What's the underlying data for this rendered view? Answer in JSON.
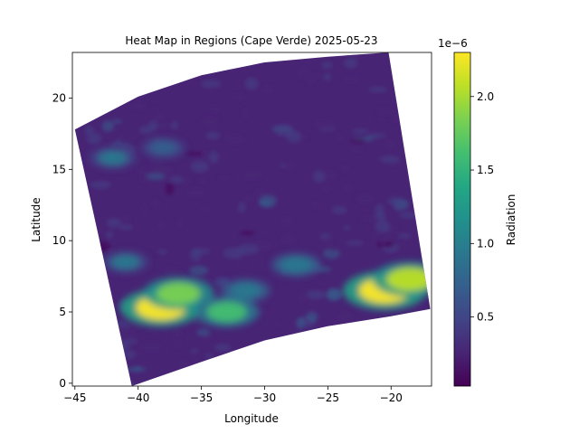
{
  "chart_data": {
    "type": "heatmap",
    "title": "Heat Map in Regions (Cape Verde) 2025-05-23",
    "xlabel": "Longitude",
    "ylabel": "Latitude",
    "xlim": [
      -45.2,
      -16.8
    ],
    "ylim": [
      -0.2,
      23.2
    ],
    "x_ticks": [
      -45,
      -40,
      -35,
      -30,
      -25,
      -20
    ],
    "y_ticks": [
      0,
      5,
      10,
      15,
      20
    ],
    "grid": false,
    "colormap": "viridis",
    "colorbar": {
      "label": "Radiation",
      "offset_text": "1e−6",
      "range": [
        3e-08,
        2.3e-06
      ],
      "ticks": [
        "0.5",
        "1.0",
        "1.5",
        "2.0"
      ],
      "tick_values": [
        0.5,
        1.0,
        1.5,
        2.0
      ]
    },
    "swath_outline": {
      "lon": [
        -45.0,
        -40.0,
        -35.0,
        -30.0,
        -25.0,
        -20.2,
        -16.9,
        -16.9,
        -20.0,
        -25.0,
        -30.0,
        -35.0,
        -40.5
      ],
      "lat": [
        17.8,
        20.1,
        21.6,
        22.5,
        22.9,
        23.2,
        5.2,
        5.2,
        4.7,
        4.0,
        3.0,
        1.5,
        -0.2
      ]
    },
    "hotspots": [
      {
        "lon": -38.2,
        "lat": 5.3,
        "value_e6": 2.2
      },
      {
        "lon": -36.8,
        "lat": 6.3,
        "value_e6": 1.8
      },
      {
        "lon": -20.5,
        "lat": 6.5,
        "value_e6": 2.3
      },
      {
        "lon": -18.5,
        "lat": 7.3,
        "value_e6": 2.0
      },
      {
        "lon": -27.5,
        "lat": 8.3,
        "value_e6": 1.0
      },
      {
        "lon": -31.5,
        "lat": 6.5,
        "value_e6": 1.0
      },
      {
        "lon": -41.0,
        "lat": 8.5,
        "value_e6": 0.9
      },
      {
        "lon": -42.0,
        "lat": 15.8,
        "value_e6": 0.9
      },
      {
        "lon": -38.0,
        "lat": 16.5,
        "value_e6": 0.8
      },
      {
        "lon": -33.0,
        "lat": 5.0,
        "value_e6": 1.6
      }
    ],
    "background_value_e6": 0.25
  }
}
